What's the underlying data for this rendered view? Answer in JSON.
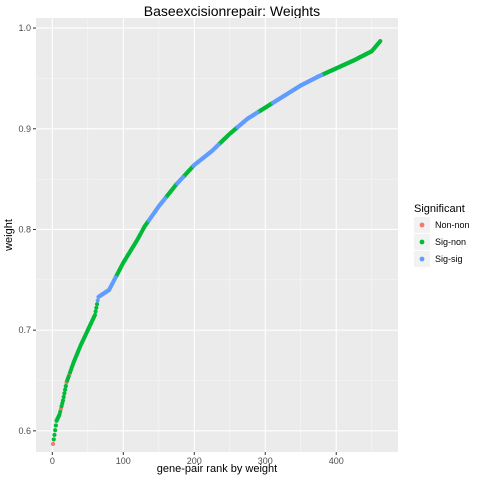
{
  "chart_data": {
    "type": "scatter",
    "title": "Baseexcisionrepair: Weights",
    "xlabel": "gene-pair rank by weight",
    "ylabel": "weight",
    "xlim": [
      -23,
      487
    ],
    "ylim": [
      0.579,
      1.01
    ],
    "x_ticks": [
      0,
      100,
      200,
      300,
      400
    ],
    "x_tick_labels": [
      "0",
      "100",
      "200",
      "300",
      "400"
    ],
    "y_ticks": [
      0.6,
      0.7,
      0.8,
      0.9,
      1.0
    ],
    "y_tick_labels": [
      "0.6",
      "0.7",
      "0.8",
      "0.9",
      "1.0"
    ],
    "grid": true,
    "legend": {
      "title": "Significant",
      "position": "right",
      "entries": [
        {
          "label": "Non-non",
          "color": "#F8766D"
        },
        {
          "label": "Sig-non",
          "color": "#00BA38"
        },
        {
          "label": "Sig-sig",
          "color": "#619CFF"
        }
      ]
    },
    "curve_anchors": [
      [
        1,
        0.587
      ],
      [
        3,
        0.596
      ],
      [
        6,
        0.61
      ],
      [
        10,
        0.616
      ],
      [
        15,
        0.63
      ],
      [
        20,
        0.648
      ],
      [
        30,
        0.668
      ],
      [
        40,
        0.685
      ],
      [
        50,
        0.7
      ],
      [
        60,
        0.715
      ],
      [
        65,
        0.733
      ],
      [
        80,
        0.74
      ],
      [
        100,
        0.767
      ],
      [
        120,
        0.79
      ],
      [
        130,
        0.803
      ],
      [
        150,
        0.823
      ],
      [
        175,
        0.845
      ],
      [
        200,
        0.864
      ],
      [
        225,
        0.878
      ],
      [
        250,
        0.895
      ],
      [
        275,
        0.91
      ],
      [
        300,
        0.921
      ],
      [
        325,
        0.932
      ],
      [
        350,
        0.943
      ],
      [
        375,
        0.952
      ],
      [
        400,
        0.96
      ],
      [
        425,
        0.968
      ],
      [
        450,
        0.977
      ],
      [
        462,
        0.987
      ]
    ],
    "series": [
      {
        "name": "Non-non",
        "color": "#F8766D",
        "x": [
          1,
          12,
          20,
          24,
          125,
          168,
          250,
          305,
          402,
          452
        ]
      },
      {
        "name": "Sig-non",
        "color": "#00BA38",
        "x": [
          2,
          3,
          4,
          5,
          6,
          7,
          8,
          9,
          10,
          11,
          13,
          14,
          15,
          16,
          17,
          18,
          19,
          21,
          22,
          23,
          25,
          26,
          27,
          28,
          29,
          30,
          31,
          32,
          33,
          34,
          35,
          36,
          37,
          38,
          39,
          40,
          41,
          42,
          43,
          44,
          45,
          46,
          47,
          48,
          49,
          50,
          51,
          52,
          53,
          54,
          55,
          56,
          57,
          58,
          59,
          60,
          61,
          62,
          63,
          90,
          91,
          92,
          93,
          94,
          95,
          96,
          97,
          98,
          99,
          100,
          101,
          102,
          103,
          104,
          105,
          106,
          107,
          108,
          109,
          110,
          111,
          112,
          113,
          114,
          115,
          116,
          117,
          118,
          119,
          120,
          121,
          122,
          123,
          124,
          126,
          127,
          128,
          129,
          130,
          131,
          132,
          133,
          134,
          135,
          160,
          161,
          162,
          163,
          164,
          165,
          166,
          167,
          169,
          170,
          171,
          172,
          173,
          174,
          175,
          185,
          186,
          187,
          188,
          189,
          190,
          191,
          192,
          193,
          194,
          195,
          196,
          197,
          198,
          235,
          236,
          237,
          238,
          239,
          240,
          241,
          242,
          243,
          244,
          245,
          246,
          247,
          248,
          249,
          251,
          252,
          253,
          254,
          255,
          256,
          257,
          258,
          259,
          260,
          290,
          291,
          292,
          293,
          294,
          295,
          296,
          297,
          298,
          299,
          300,
          301,
          302,
          303,
          304,
          306,
          307,
          308,
          309,
          310,
          380,
          381,
          382,
          383,
          384,
          385,
          386,
          387,
          388,
          389,
          390,
          391,
          392,
          393,
          394,
          395,
          396,
          397,
          398,
          399,
          400,
          401,
          403,
          404,
          405,
          406,
          407,
          408,
          409,
          410,
          411,
          412,
          413,
          414,
          415,
          416,
          417,
          418,
          419,
          420,
          421,
          422,
          423,
          424,
          425,
          426,
          427,
          428,
          429,
          430,
          431,
          432,
          433,
          434,
          435,
          436,
          437,
          438,
          439,
          440,
          441,
          442,
          443,
          444,
          445,
          446,
          447,
          448,
          449,
          450,
          451,
          453,
          454,
          455,
          456,
          457,
          458,
          459,
          460,
          461,
          462
        ]
      },
      {
        "name": "Sig-sig",
        "color": "#619CFF",
        "x_ranges": [
          [
            64,
            89
          ],
          [
            136,
            159
          ],
          [
            176,
            184
          ],
          [
            199,
            234
          ],
          [
            261,
            289
          ],
          [
            311,
            379
          ]
        ]
      }
    ]
  }
}
